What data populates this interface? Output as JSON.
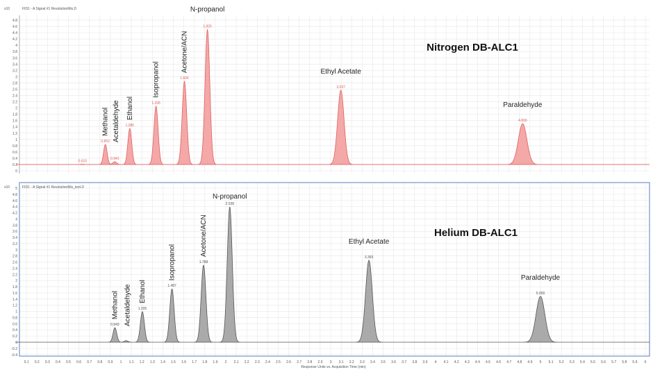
{
  "chart_data": [
    {
      "type": "line",
      "title": "Nitrogen DB-ALC1",
      "header": "FID1 - A Signal #1 ResolutionMix.D",
      "y_multiplier": "x10",
      "ylim": [
        0,
        4.9
      ],
      "xlim": [
        0,
        6.05
      ],
      "baseline": 0.2,
      "grid": true,
      "color": "#e06060",
      "fill": "#f4a8a8",
      "yticks": [
        0,
        0.2,
        0.4,
        0.6,
        0.8,
        1,
        1.2,
        1.4,
        1.6,
        1.8,
        2,
        2.2,
        2.4,
        2.6,
        2.8,
        3,
        3.2,
        3.4,
        3.6,
        3.8,
        4,
        4.2,
        4.4,
        4.6,
        4.8
      ],
      "peaks": [
        {
          "name": "",
          "rt": 0.633,
          "label": "0.633",
          "height": 0.21
        },
        {
          "name": "Methanol",
          "rt": 0.852,
          "label": "0.852",
          "height": 0.84
        },
        {
          "name": "Acetaldehyde",
          "rt": 0.942,
          "label": "0.942",
          "height": 0.29
        },
        {
          "name": "Ethanol",
          "rt": 1.085,
          "label": "1.085",
          "height": 1.35
        },
        {
          "name": "Isopropanol",
          "rt": 1.335,
          "label": "1.335",
          "height": 2.06
        },
        {
          "name": "Acetone/ACN",
          "rt": 1.606,
          "label": "1.606",
          "height": 2.85
        },
        {
          "name": "N-propanol",
          "rt": 1.825,
          "label": "1.825",
          "height": 4.5
        },
        {
          "name": "Ethyl Acetate",
          "rt": 3.097,
          "label": "3.097",
          "height": 2.57
        },
        {
          "name": "Paraldehyde",
          "rt": 4.83,
          "label": "4.830",
          "height": 1.5
        }
      ]
    },
    {
      "type": "line",
      "title": "Helium DB-ALC1",
      "header": "FID1 - A Signal #1 ResolutionMix_test.D",
      "y_multiplier": "x10",
      "ylim": [
        -0.45,
        5
      ],
      "xlim": [
        0,
        6.05
      ],
      "baseline": 0,
      "grid": true,
      "color": "#555555",
      "fill": "#aaaaaa",
      "xlabel": "Response Units vs. Acquisition Time (min)",
      "yticks": [
        -0.4,
        -0.2,
        0,
        0.2,
        0.4,
        0.6,
        0.8,
        1,
        1.2,
        1.4,
        1.6,
        1.8,
        2,
        2.2,
        2.4,
        2.6,
        2.8,
        3,
        3.2,
        3.4,
        3.6,
        3.8,
        4,
        4.2,
        4.4,
        4.6,
        4.8,
        5
      ],
      "xticks": [
        0.1,
        0.2,
        0.3,
        0.4,
        0.5,
        0.6,
        0.7,
        0.8,
        0.9,
        1,
        1.1,
        1.2,
        1.3,
        1.4,
        1.5,
        1.6,
        1.7,
        1.8,
        1.9,
        2,
        2.1,
        2.2,
        2.3,
        2.4,
        2.5,
        2.6,
        2.7,
        2.8,
        2.9,
        3,
        3.1,
        3.2,
        3.3,
        3.4,
        3.5,
        3.6,
        3.7,
        3.8,
        3.9,
        4,
        4.1,
        4.2,
        4.3,
        4.4,
        4.5,
        4.6,
        4.7,
        4.8,
        4.9,
        5,
        5.1,
        5.2,
        5.3,
        5.4,
        5.5,
        5.6,
        5.7,
        5.8,
        5.9,
        6
      ],
      "peaks": [
        {
          "name": "Methanol",
          "rt": 0.943,
          "label": "0.943",
          "height": 0.47
        },
        {
          "name": "Acetaldehyde",
          "rt": 1.05,
          "label": "",
          "height": 0.05
        },
        {
          "name": "Ethanol",
          "rt": 1.205,
          "label": "1.205",
          "height": 0.99
        },
        {
          "name": "Isopropanol",
          "rt": 1.487,
          "label": "1.487",
          "height": 1.73
        },
        {
          "name": "Acetone/ACN",
          "rt": 1.788,
          "label": "1.788",
          "height": 2.5
        },
        {
          "name": "N-propanol",
          "rt": 2.038,
          "label": "2.038",
          "height": 4.39
        },
        {
          "name": "Ethyl Acetate",
          "rt": 3.365,
          "label": "3.365",
          "height": 2.66
        },
        {
          "name": "Paraldehyde",
          "rt": 5.0,
          "label": "5.000",
          "height": 1.49
        }
      ]
    }
  ]
}
